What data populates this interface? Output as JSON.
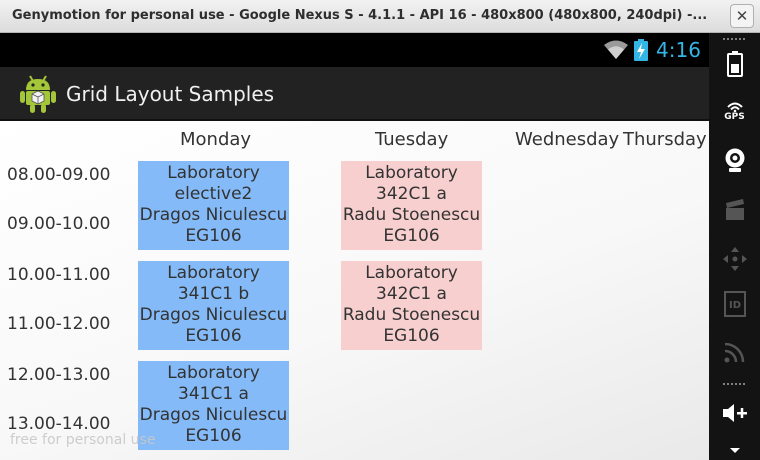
{
  "window": {
    "title": "Genymotion for personal use - Google Nexus S - 4.1.1 - API 16 - 480x800 (480x800, 240dpi) -...",
    "close_glyph": "✕"
  },
  "statusbar": {
    "time": "4:16"
  },
  "actionbar": {
    "title": "Grid Layout Samples"
  },
  "schedule": {
    "days": [
      "Monday",
      "Tuesday",
      "Wednesday",
      "Thursday"
    ],
    "times": [
      "08.00-09.00",
      "09.00-10.00",
      "10.00-11.00",
      "11.00-12.00",
      "12.00-13.00",
      "13.00-14.00"
    ],
    "classes": [
      {
        "day": "Monday",
        "type": "Laboratory",
        "group": "elective2",
        "teacher": "Dragos Niculescu",
        "room": "EG106",
        "color": "#84baf7"
      },
      {
        "day": "Tuesday",
        "type": "Laboratory",
        "group": "342C1 a",
        "teacher": "Radu Stoenescu",
        "room": "EG106",
        "color": "#f7cfcf"
      },
      {
        "day": "Monday",
        "type": "Laboratory",
        "group": "341C1 b",
        "teacher": "Dragos Niculescu",
        "room": "EG106",
        "color": "#84baf7"
      },
      {
        "day": "Tuesday",
        "type": "Laboratory",
        "group": "342C1 a",
        "teacher": "Radu Stoenescu",
        "room": "EG106",
        "color": "#f7cfcf"
      },
      {
        "day": "Monday",
        "type": "Laboratory",
        "group": "341C1 a",
        "teacher": "Dragos Niculescu",
        "room": "EG106",
        "color": "#84baf7"
      }
    ]
  },
  "watermark": "free for personal use",
  "toolstrip": {
    "items": [
      {
        "icon": "battery-icon"
      },
      {
        "icon": "gps-icon",
        "label": "GPS"
      },
      {
        "icon": "camera-icon"
      },
      {
        "icon": "clapperboard-icon"
      },
      {
        "icon": "dpad-icon"
      },
      {
        "icon": "id-icon",
        "label": "ID"
      },
      {
        "icon": "rss-icon"
      },
      {
        "icon": "volume-up-icon"
      }
    ]
  }
}
